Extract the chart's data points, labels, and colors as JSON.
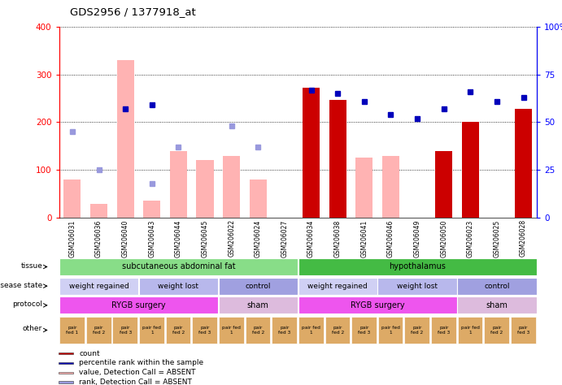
{
  "title": "GDS2956 / 1377918_at",
  "samples": [
    "GSM206031",
    "GSM206036",
    "GSM206040",
    "GSM206043",
    "GSM206044",
    "GSM206045",
    "GSM206022",
    "GSM206024",
    "GSM206027",
    "GSM206034",
    "GSM206038",
    "GSM206041",
    "GSM206046",
    "GSM206049",
    "GSM206050",
    "GSM206023",
    "GSM206025",
    "GSM206028"
  ],
  "count_values": [
    null,
    null,
    null,
    null,
    null,
    null,
    null,
    null,
    null,
    272,
    247,
    null,
    null,
    null,
    140,
    200,
    null,
    228
  ],
  "absent_bar_values": [
    80,
    28,
    330,
    35,
    140,
    120,
    130,
    80,
    null,
    null,
    null,
    125,
    130,
    null,
    null,
    null,
    null,
    null
  ],
  "percentile_present_values": [
    null,
    null,
    57,
    59,
    null,
    null,
    null,
    null,
    null,
    67,
    65,
    61,
    54,
    52,
    57,
    66,
    61,
    63
  ],
  "percentile_absent_values": [
    45,
    25,
    null,
    18,
    37,
    null,
    48,
    37,
    null,
    null,
    null,
    null,
    null,
    null,
    null,
    null,
    null,
    null
  ],
  "count_red": "#cc0000",
  "absent_bar_color": "#ffb3b3",
  "percentile_present_color": "#0000bb",
  "percentile_absent_color": "#9999dd",
  "tissue_row": [
    {
      "label": "subcutaneous abdominal fat",
      "start": 0,
      "end": 9,
      "color": "#88dd88"
    },
    {
      "label": "hypothalamus",
      "start": 9,
      "end": 18,
      "color": "#44bb44"
    }
  ],
  "disease_state_row": [
    {
      "label": "weight regained",
      "start": 0,
      "end": 3,
      "color": "#d0d0f4"
    },
    {
      "label": "weight lost",
      "start": 3,
      "end": 6,
      "color": "#b8b8ec"
    },
    {
      "label": "control",
      "start": 6,
      "end": 9,
      "color": "#a0a0e0"
    },
    {
      "label": "weight regained",
      "start": 9,
      "end": 12,
      "color": "#d0d0f4"
    },
    {
      "label": "weight lost",
      "start": 12,
      "end": 15,
      "color": "#b8b8ec"
    },
    {
      "label": "control",
      "start": 15,
      "end": 18,
      "color": "#a0a0e0"
    }
  ],
  "protocol_row": [
    {
      "label": "RYGB surgery",
      "start": 0,
      "end": 6,
      "color": "#ee55ee"
    },
    {
      "label": "sham",
      "start": 6,
      "end": 9,
      "color": "#ddbbdd"
    },
    {
      "label": "RYGB surgery",
      "start": 9,
      "end": 15,
      "color": "#ee55ee"
    },
    {
      "label": "sham",
      "start": 15,
      "end": 18,
      "color": "#ddbbdd"
    }
  ],
  "other_color": "#ddaa66",
  "other_labels": [
    "pair\nfed 1",
    "pair\nfed 2",
    "pair\nfed 3",
    "pair fed\n1",
    "pair\nfed 2",
    "pair\nfed 3",
    "pair fed\n1",
    "pair\nfed 2",
    "pair\nfed 3",
    "pair fed\n1",
    "pair\nfed 2",
    "pair\nfed 3",
    "pair fed\n1",
    "pair\nfed 2",
    "pair\nfed 3",
    "pair fed\n1",
    "pair\nfed 2",
    "pair\nfed 3"
  ],
  "legend_items": [
    {
      "color": "#cc0000",
      "label": "count"
    },
    {
      "color": "#0000bb",
      "label": "percentile rank within the sample"
    },
    {
      "color": "#ffb3b3",
      "label": "value, Detection Call = ABSENT"
    },
    {
      "color": "#9999dd",
      "label": "rank, Detection Call = ABSENT"
    }
  ]
}
